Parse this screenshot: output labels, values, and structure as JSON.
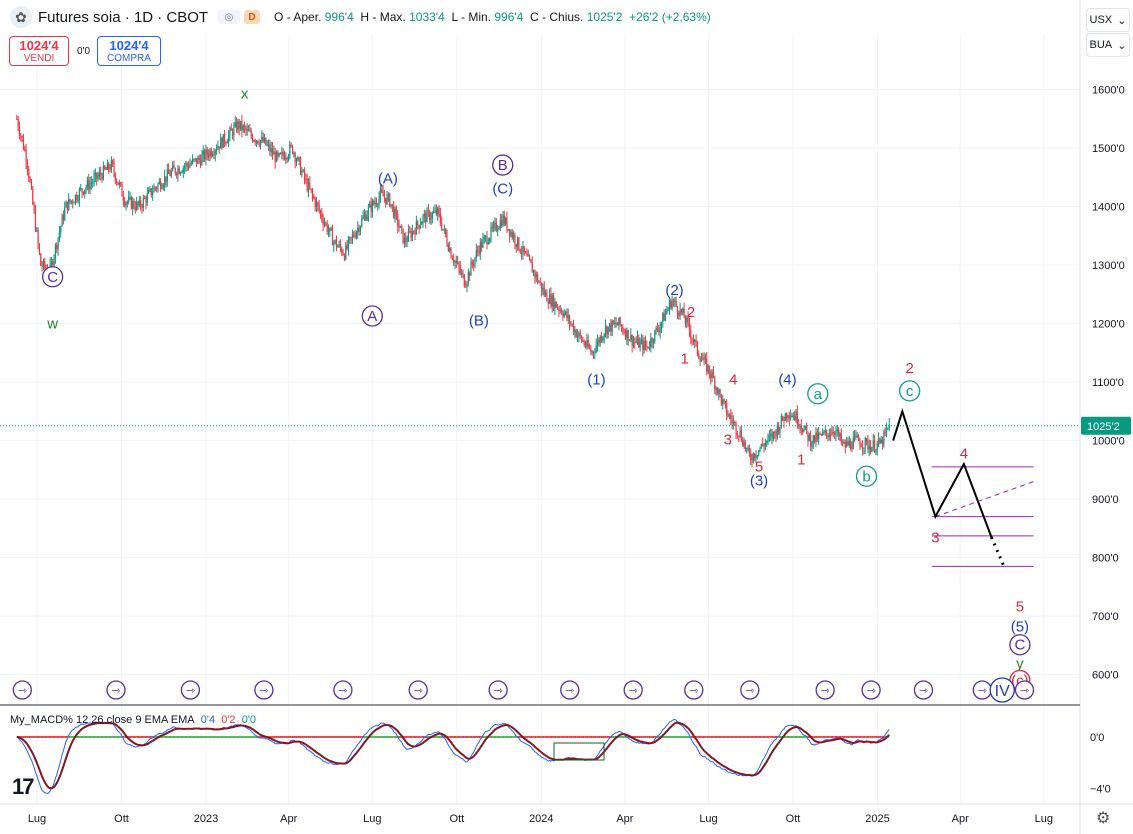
{
  "header": {
    "symbol_title": "Futures soia · 1D · CBOT",
    "eye_label": "◎",
    "d_badge": "D",
    "ohlc": {
      "open_label": "O - Aper.",
      "open": "996'4",
      "high_label": "H - Max.",
      "high": "1033'4",
      "low_label": "L - Min.",
      "low": "996'4",
      "close_label": "C - Chius.",
      "close": "1025'2",
      "change": "+26'2 (+2,63%)"
    }
  },
  "trade_buttons": {
    "sell_price": "1024'4",
    "sell_label": "VENDI",
    "spread": "0'0",
    "buy_price": "1024'4",
    "buy_label": "COMPRA"
  },
  "currency_selector": {
    "value": "USX",
    "arrow": "⌄"
  },
  "unit_selector": {
    "value": "BUA",
    "arrow": "⌄"
  },
  "indicator": {
    "name": "My_MACD% 12 26 close 9 EMA EMA",
    "v1": "0'4",
    "v2": "0'2",
    "v3": "0'0"
  },
  "colors": {
    "up": "#089981",
    "down": "#f23645",
    "price_line": "#089981",
    "wave_blue": "#1f3fbf",
    "wave_purple": "#5b2d9a",
    "wave_green": "#1b8a2a",
    "wave_red": "#e0283c",
    "wave_teal": "#119c88"
  },
  "chart_data": {
    "type": "candlestick",
    "title": "Futures soia · 1D · CBOT",
    "y_axis_ticks": [
      "1600'0",
      "1500'0",
      "1400'0",
      "1300'0",
      "1200'0",
      "1100'0",
      "1000'0",
      "900'0",
      "800'0",
      "700'0",
      "600'0"
    ],
    "y_axis_values": [
      1600,
      1500,
      1400,
      1300,
      1200,
      1100,
      1000,
      900,
      800,
      700,
      600
    ],
    "ylim": [
      548,
      1695
    ],
    "x_axis_labels": [
      "Lug",
      "Ott",
      "2023",
      "Apr",
      "Lug",
      "Ott",
      "2024",
      "Apr",
      "Lug",
      "Ott",
      "2025",
      "Apr",
      "Lug"
    ],
    "x_axis_dates": [
      "2022-07-01",
      "2022-10-01",
      "2023-01-01",
      "2023-04-01",
      "2023-07-01",
      "2023-10-01",
      "2024-01-01",
      "2024-04-01",
      "2024-07-01",
      "2024-10-01",
      "2025-01-01",
      "2025-04-01",
      "2025-07-01"
    ],
    "last_price_label": "1025'2",
    "last_price": 1025.25,
    "price_path": [
      [
        "2022-06-09",
        1550
      ],
      [
        "2022-06-20",
        1480
      ],
      [
        "2022-07-05",
        1300
      ],
      [
        "2022-07-15",
        1290
      ],
      [
        "2022-08-01",
        1400
      ],
      [
        "2022-08-20",
        1430
      ],
      [
        "2022-09-05",
        1450
      ],
      [
        "2022-09-20",
        1470
      ],
      [
        "2022-10-05",
        1410
      ],
      [
        "2022-10-20",
        1400
      ],
      [
        "2022-11-05",
        1430
      ],
      [
        "2022-11-25",
        1460
      ],
      [
        "2022-12-10",
        1470
      ],
      [
        "2022-12-25",
        1480
      ],
      [
        "2023-01-10",
        1500
      ],
      [
        "2023-01-25",
        1520
      ],
      [
        "2023-02-05",
        1540
      ],
      [
        "2023-02-20",
        1520
      ],
      [
        "2023-03-05",
        1510
      ],
      [
        "2023-03-20",
        1480
      ],
      [
        "2023-04-05",
        1500
      ],
      [
        "2023-04-20",
        1440
      ],
      [
        "2023-05-05",
        1390
      ],
      [
        "2023-05-20",
        1340
      ],
      [
        "2023-06-01",
        1320
      ],
      [
        "2023-06-10",
        1350
      ],
      [
        "2023-06-25",
        1390
      ],
      [
        "2023-07-10",
        1420
      ],
      [
        "2023-07-20",
        1410
      ],
      [
        "2023-08-05",
        1340
      ],
      [
        "2023-08-25",
        1380
      ],
      [
        "2023-09-10",
        1390
      ],
      [
        "2023-09-25",
        1320
      ],
      [
        "2023-10-10",
        1270
      ],
      [
        "2023-10-25",
        1330
      ],
      [
        "2023-11-10",
        1360
      ],
      [
        "2023-11-20",
        1380
      ],
      [
        "2023-12-05",
        1340
      ],
      [
        "2023-12-20",
        1300
      ],
      [
        "2024-01-05",
        1250
      ],
      [
        "2024-01-25",
        1220
      ],
      [
        "2024-02-10",
        1180
      ],
      [
        "2024-02-25",
        1150
      ],
      [
        "2024-03-10",
        1190
      ],
      [
        "2024-03-25",
        1200
      ],
      [
        "2024-04-10",
        1170
      ],
      [
        "2024-04-25",
        1160
      ],
      [
        "2024-05-10",
        1200
      ],
      [
        "2024-05-22",
        1240
      ],
      [
        "2024-06-05",
        1210
      ],
      [
        "2024-06-20",
        1150
      ],
      [
        "2024-07-05",
        1110
      ],
      [
        "2024-07-20",
        1050
      ],
      [
        "2024-08-05",
        1010
      ],
      [
        "2024-08-15",
        970
      ],
      [
        "2024-08-28",
        990
      ],
      [
        "2024-09-10",
        1010
      ],
      [
        "2024-09-25",
        1050
      ],
      [
        "2024-10-05",
        1040
      ],
      [
        "2024-10-20",
        1000
      ],
      [
        "2024-11-05",
        1010
      ],
      [
        "2024-11-15",
        1020
      ],
      [
        "2024-11-25",
        990
      ],
      [
        "2024-12-10",
        1000
      ],
      [
        "2024-12-25",
        990
      ],
      [
        "2025-01-05",
        995
      ],
      [
        "2025-01-14",
        1025
      ]
    ],
    "projection_path": [
      [
        "2025-01-18",
        1000
      ],
      [
        "2025-01-28",
        1050
      ],
      [
        "2025-03-05",
        870
      ],
      [
        "2025-04-05",
        960
      ],
      [
        "2025-05-05",
        835
      ]
    ],
    "projection_dotted": [
      [
        "2025-05-05",
        835
      ],
      [
        "2025-05-20",
        780
      ]
    ],
    "levels": [
      {
        "value": 955,
        "from": "2025-03-01",
        "to": "2025-06-20"
      },
      {
        "value": 870,
        "from": "2025-03-01",
        "to": "2025-06-20"
      },
      {
        "value": 837,
        "from": "2025-03-01",
        "to": "2025-06-20"
      },
      {
        "value": 785,
        "from": "2025-03-01",
        "to": "2025-06-20"
      }
    ],
    "trend_dashed": {
      "from": [
        "2025-03-05",
        870
      ],
      "to": [
        "2025-06-20",
        930
      ]
    },
    "wave_labels": [
      {
        "text": "x",
        "date": "2023-02-12",
        "price": 1593,
        "style": "green"
      },
      {
        "text": "w",
        "date": "2022-07-18",
        "price": 1200,
        "style": "green"
      },
      {
        "text": "C",
        "date": "2022-07-18",
        "price": 1280,
        "style": "purple-circle"
      },
      {
        "text": "(A)",
        "date": "2023-07-18",
        "price": 1448,
        "style": "blue"
      },
      {
        "text": "A",
        "date": "2023-07-01",
        "price": 1213,
        "style": "purple-circle"
      },
      {
        "text": "B",
        "date": "2023-11-20",
        "price": 1471,
        "style": "purple-circle"
      },
      {
        "text": "(C)",
        "date": "2023-11-20",
        "price": 1431,
        "style": "blue"
      },
      {
        "text": "(B)",
        "date": "2023-10-25",
        "price": 1205,
        "style": "blue"
      },
      {
        "text": "(1)",
        "date": "2024-03-01",
        "price": 1104,
        "style": "blue"
      },
      {
        "text": "(2)",
        "date": "2024-05-25",
        "price": 1257,
        "style": "blue"
      },
      {
        "text": "2",
        "date": "2024-06-12",
        "price": 1220,
        "style": "red"
      },
      {
        "text": "1",
        "date": "2024-06-05",
        "price": 1140,
        "style": "red"
      },
      {
        "text": "4",
        "date": "2024-07-28",
        "price": 1104,
        "style": "red"
      },
      {
        "text": "3",
        "date": "2024-07-22",
        "price": 1002,
        "style": "red"
      },
      {
        "text": "5",
        "date": "2024-08-25",
        "price": 956,
        "style": "red"
      },
      {
        "text": "(3)",
        "date": "2024-08-25",
        "price": 932,
        "style": "blue"
      },
      {
        "text": "(4)",
        "date": "2024-09-25",
        "price": 1104,
        "style": "blue"
      },
      {
        "text": "a",
        "date": "2024-10-28",
        "price": 1080,
        "style": "teal-circle"
      },
      {
        "text": "1",
        "date": "2024-10-10",
        "price": 968,
        "style": "red"
      },
      {
        "text": "b",
        "date": "2024-12-20",
        "price": 939,
        "style": "teal-circle"
      },
      {
        "text": "2",
        "date": "2025-02-05",
        "price": 1124,
        "style": "red"
      },
      {
        "text": "c",
        "date": "2025-02-05",
        "price": 1085,
        "style": "teal-circle"
      },
      {
        "text": "4",
        "date": "2025-04-05",
        "price": 978,
        "style": "red"
      },
      {
        "text": "3",
        "date": "2025-03-05",
        "price": 834,
        "style": "red"
      },
      {
        "text": "5",
        "date": "2025-06-05",
        "price": 716,
        "style": "red"
      },
      {
        "text": "(5)",
        "date": "2025-06-05",
        "price": 682,
        "style": "blue"
      },
      {
        "text": "C",
        "date": "2025-06-05",
        "price": 651,
        "style": "purple-circle"
      },
      {
        "text": "y",
        "date": "2025-06-05",
        "price": 619,
        "style": "green"
      },
      {
        "text": "(c)",
        "date": "2025-06-05",
        "price": 590,
        "style": "red-circle"
      }
    ],
    "event_marker_dates": [
      "2022-06-15",
      "2022-09-25",
      "2022-12-15",
      "2023-03-05",
      "2023-05-30",
      "2023-08-20",
      "2023-11-15",
      "2024-02-01",
      "2024-04-10",
      "2024-06-15",
      "2024-08-15",
      "2024-11-05",
      "2024-12-25",
      "2025-02-20",
      "2025-04-25",
      "2025-05-20",
      "2025-06-10"
    ],
    "event_marker_glyph": "⇾",
    "iv_label": {
      "text": "IV",
      "date": "2025-05-20"
    },
    "macd": {
      "y_axis_ticks": [
        "0'0",
        "−4'0"
      ],
      "y_axis_values": [
        0,
        -4
      ],
      "ylim": [
        -5.2,
        2.4
      ],
      "zero_line_colors": [
        "#089981",
        "#f23645"
      ]
    }
  }
}
